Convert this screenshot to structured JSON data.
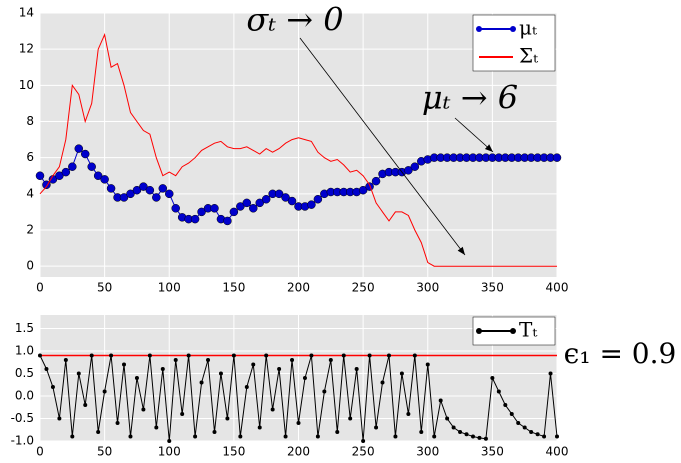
{
  "chart_data": [
    {
      "type": "line",
      "x": [
        0,
        5,
        10,
        15,
        20,
        25,
        30,
        35,
        40,
        45,
        50,
        55,
        60,
        65,
        70,
        75,
        80,
        85,
        90,
        95,
        100,
        105,
        110,
        115,
        120,
        125,
        130,
        135,
        140,
        145,
        150,
        155,
        160,
        165,
        170,
        175,
        180,
        185,
        190,
        195,
        200,
        205,
        210,
        215,
        220,
        225,
        230,
        235,
        240,
        245,
        250,
        255,
        260,
        265,
        270,
        275,
        280,
        285,
        290,
        295,
        300,
        305,
        310,
        315,
        320,
        325,
        330,
        335,
        340,
        345,
        350,
        355,
        360,
        365,
        370,
        375,
        380,
        385,
        390,
        395,
        400
      ],
      "series": [
        {
          "name": "μₜ",
          "color": "#0000cc",
          "marker": true,
          "values": [
            5,
            4.5,
            4.8,
            5,
            5.2,
            5.5,
            6.5,
            6.2,
            5.5,
            5,
            4.8,
            4.3,
            3.8,
            3.8,
            4,
            4.2,
            4.4,
            4.2,
            3.8,
            4.3,
            4,
            3.2,
            2.7,
            2.6,
            2.6,
            3,
            3.2,
            3.2,
            2.6,
            2.5,
            3,
            3.3,
            3.5,
            3.2,
            3.5,
            3.7,
            4,
            4,
            3.8,
            3.6,
            3.3,
            3.3,
            3.4,
            3.7,
            4,
            4.1,
            4.1,
            4.1,
            4.1,
            4.1,
            4.2,
            4.4,
            4.7,
            5.1,
            5.2,
            5.2,
            5.2,
            5.3,
            5.5,
            5.8,
            5.9,
            6,
            6,
            6,
            6,
            6,
            6,
            6,
            6,
            6,
            6,
            6,
            6,
            6,
            6,
            6,
            6,
            6,
            6,
            6,
            6
          ]
        },
        {
          "name": "Σₜ",
          "color": "#ff0000",
          "marker": false,
          "values": [
            4,
            4.4,
            5,
            5.5,
            7,
            10,
            9.5,
            8,
            9,
            12,
            12.8,
            11,
            11.2,
            10,
            8.5,
            8,
            7.5,
            7.3,
            6,
            5,
            5.2,
            5,
            5.5,
            5.7,
            6,
            6.4,
            6.6,
            6.8,
            6.9,
            6.6,
            6.5,
            6.5,
            6.6,
            6.4,
            6.2,
            6.5,
            6.3,
            6.5,
            6.8,
            7,
            7.1,
            7,
            6.9,
            6.3,
            6,
            5.8,
            5.9,
            5.6,
            5.2,
            5.3,
            5,
            4.5,
            3.5,
            3,
            2.5,
            3,
            3,
            2.8,
            2,
            1.3,
            0.2,
            0,
            0,
            0,
            0,
            0,
            0,
            0,
            0,
            0,
            0,
            0,
            0,
            0,
            0,
            0,
            0,
            0,
            0,
            0,
            0
          ]
        }
      ],
      "xlim": [
        0,
        400
      ],
      "xticks": [
        0,
        50,
        100,
        150,
        200,
        250,
        300,
        350,
        400
      ],
      "ylim": [
        -0.6,
        14
      ],
      "yticks": [
        0,
        2,
        4,
        6,
        8,
        10,
        12,
        14
      ],
      "annotations": [
        {
          "text": "σₜ → 0"
        },
        {
          "text": "μₜ → 6"
        }
      ],
      "legend": "upper right"
    },
    {
      "type": "line",
      "x": [
        0,
        5,
        10,
        15,
        20,
        25,
        30,
        35,
        40,
        45,
        50,
        55,
        60,
        65,
        70,
        75,
        80,
        85,
        90,
        95,
        100,
        105,
        110,
        115,
        120,
        125,
        130,
        135,
        140,
        145,
        150,
        155,
        160,
        165,
        170,
        175,
        180,
        185,
        190,
        195,
        200,
        205,
        210,
        215,
        220,
        225,
        230,
        235,
        240,
        245,
        250,
        255,
        260,
        265,
        270,
        275,
        280,
        285,
        290,
        295,
        300,
        305,
        310,
        315,
        320,
        325,
        330,
        335,
        340,
        345,
        350,
        355,
        360,
        365,
        370,
        375,
        380,
        385,
        390,
        395,
        400
      ],
      "series": [
        {
          "name": "Tₜ",
          "color": "#000000",
          "marker": true,
          "values": [
            0.9,
            0.6,
            0.2,
            -0.5,
            0.8,
            -0.9,
            0.5,
            -0.2,
            0.9,
            -0.8,
            0.1,
            0.9,
            -0.6,
            0.7,
            -0.9,
            0.4,
            -0.3,
            0.9,
            -0.7,
            0.6,
            -1,
            0.8,
            -0.4,
            0.9,
            -0.9,
            0.3,
            0.8,
            -0.8,
            0.5,
            -0.5,
            0.9,
            -0.9,
            0.2,
            0.7,
            -0.7,
            0.9,
            -0.3,
            0.6,
            -0.9,
            0.8,
            -0.6,
            0.4,
            0.9,
            -0.9,
            0.1,
            0.8,
            -0.8,
            0.9,
            -0.5,
            0.6,
            -1,
            0.9,
            -0.7,
            0.3,
            0.9,
            -0.9,
            0.5,
            -0.4,
            0.9,
            -0.8,
            0.7,
            -0.9,
            -0.1,
            -0.5,
            -0.7,
            -0.8,
            -0.85,
            -0.9,
            -0.93,
            -0.95,
            0.4,
            0.1,
            -0.2,
            -0.4,
            -0.6,
            -0.7,
            -0.8,
            -0.85,
            -0.9,
            0.5,
            -0.9
          ]
        }
      ],
      "xlim": [
        0,
        400
      ],
      "xticks": [
        0,
        50,
        100,
        150,
        200,
        250,
        300,
        350,
        400
      ],
      "ylim": [
        -1,
        1.8
      ],
      "yticks": [
        {
          "value": -1,
          "label": "-1.0"
        },
        -0.5,
        {
          "value": 0,
          "label": "0.0"
        },
        0.5,
        {
          "value": 1,
          "label": "1.0"
        },
        1.5
      ],
      "hlines": [
        {
          "value": 0.9,
          "color": "#ff0000",
          "label": "ϵ₁ = 0.9"
        }
      ],
      "legend": "upper right"
    }
  ]
}
